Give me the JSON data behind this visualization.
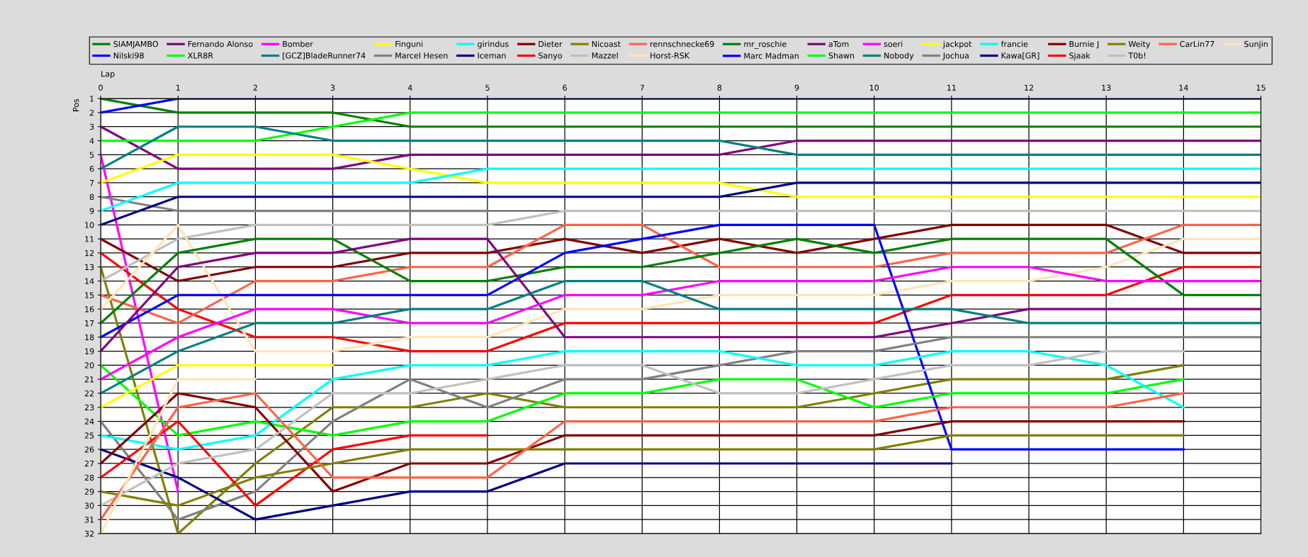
{
  "chart_data": {
    "type": "line",
    "xlabel": "Lap",
    "ylabel": "Pos",
    "x": [
      0,
      1,
      2,
      3,
      4,
      5,
      6,
      7,
      8,
      9,
      10,
      11,
      12,
      13,
      14,
      15
    ],
    "xlim": [
      0,
      15
    ],
    "xticks": [
      0,
      1,
      2,
      3,
      4,
      5,
      6,
      7,
      8,
      9,
      10,
      11,
      12,
      13,
      14,
      15
    ],
    "ylim": [
      32,
      1
    ],
    "yticks": [
      1,
      2,
      3,
      4,
      5,
      6,
      7,
      8,
      9,
      10,
      11,
      12,
      13,
      14,
      15,
      16,
      17,
      18,
      19,
      20,
      21,
      22,
      23,
      24,
      25,
      26,
      27,
      28,
      29,
      30,
      31,
      32
    ],
    "grid": true,
    "legend": "top",
    "series": [
      {
        "name": "SIAMJAMBO",
        "color": "#008000",
        "values": [
          1,
          2,
          2,
          2,
          3,
          3,
          3,
          3,
          3,
          3,
          3,
          3,
          3,
          3,
          3,
          3
        ]
      },
      {
        "name": "Nilski98",
        "color": "#0000ff",
        "values": [
          2,
          1,
          1,
          1,
          1,
          1,
          1,
          1,
          1,
          1,
          1,
          1,
          1,
          1,
          1,
          1
        ]
      },
      {
        "name": "Fernando Alonso",
        "color": "#800080",
        "values": [
          3,
          6,
          6,
          6,
          5,
          5,
          5,
          5,
          5,
          4,
          4,
          4,
          4,
          4,
          4,
          4
        ]
      },
      {
        "name": "XLR8R",
        "color": "#00ff00",
        "values": [
          4,
          4,
          4,
          3,
          2,
          2,
          2,
          2,
          2,
          2,
          2,
          2,
          2,
          2,
          2,
          2
        ]
      },
      {
        "name": "Bomber",
        "color": "#ff00ff",
        "values": [
          5,
          29,
          null,
          null,
          null,
          null,
          null,
          null,
          null,
          null,
          null,
          null,
          null,
          null,
          null,
          null
        ]
      },
      {
        "name": "[GCZ]BladeRunner74",
        "color": "#008080",
        "values": [
          6,
          3,
          3,
          4,
          4,
          4,
          4,
          4,
          4,
          5,
          5,
          5,
          5,
          5,
          5,
          5
        ]
      },
      {
        "name": "Finguni",
        "color": "#ffff00",
        "values": [
          7,
          5,
          5,
          5,
          6,
          7,
          7,
          7,
          7,
          8,
          8,
          8,
          8,
          8,
          8,
          8
        ]
      },
      {
        "name": "Marcel Hesen",
        "color": "#808080",
        "values": [
          8,
          9,
          9,
          9,
          9,
          9,
          null,
          null,
          null,
          null,
          null,
          null,
          null,
          null,
          null,
          null
        ]
      },
      {
        "name": "girindus",
        "color": "#00ffff",
        "values": [
          9,
          7,
          7,
          7,
          7,
          6,
          6,
          6,
          6,
          6,
          6,
          6,
          6,
          6,
          6,
          6
        ]
      },
      {
        "name": "Iceman",
        "color": "#000080",
        "values": [
          10,
          8,
          8,
          8,
          8,
          8,
          8,
          8,
          8,
          7,
          7,
          7,
          7,
          7,
          7,
          7
        ]
      },
      {
        "name": "Dieter",
        "color": "#800000",
        "values": [
          11,
          14,
          13,
          13,
          12,
          12,
          11,
          12,
          11,
          12,
          11,
          10,
          10,
          10,
          12,
          12
        ]
      },
      {
        "name": "Sanyo",
        "color": "#ff0000",
        "values": [
          12,
          16,
          18,
          18,
          19,
          19,
          17,
          17,
          17,
          17,
          17,
          15,
          15,
          15,
          13,
          13
        ]
      },
      {
        "name": "Nicoast",
        "color": "#808000",
        "values": [
          13,
          32,
          27,
          23,
          23,
          22,
          23,
          23,
          23,
          23,
          22,
          21,
          21,
          21,
          20,
          null
        ]
      },
      {
        "name": "Mazzel",
        "color": "#c0c0c0",
        "values": [
          14,
          11,
          10,
          10,
          10,
          10,
          9,
          9,
          9,
          9,
          9,
          9,
          9,
          9,
          9,
          9
        ]
      },
      {
        "name": "rennschnecke69",
        "color": "#ff6347",
        "values": [
          15,
          17,
          14,
          14,
          13,
          13,
          10,
          10,
          13,
          13,
          13,
          12,
          12,
          12,
          10,
          10
        ]
      },
      {
        "name": "Horst-RSK",
        "color": "#ffe4b5",
        "values": [
          16,
          10,
          19,
          19,
          18,
          18,
          16,
          16,
          15,
          15,
          15,
          14,
          14,
          13,
          11,
          11
        ]
      },
      {
        "name": "mr_roschie",
        "color": "#008000",
        "values": [
          17,
          12,
          11,
          11,
          14,
          14,
          13,
          13,
          12,
          11,
          12,
          11,
          11,
          11,
          15,
          15
        ]
      },
      {
        "name": "Marc Madman",
        "color": "#0000ff",
        "values": [
          18,
          15,
          15,
          15,
          15,
          15,
          12,
          11,
          10,
          10,
          10,
          26,
          26,
          26,
          26,
          null
        ]
      },
      {
        "name": "aTom",
        "color": "#800080",
        "values": [
          19,
          13,
          12,
          12,
          11,
          11,
          18,
          18,
          18,
          18,
          18,
          17,
          16,
          16,
          16,
          16
        ]
      },
      {
        "name": "Shawn",
        "color": "#00ff00",
        "values": [
          20,
          25,
          24,
          25,
          24,
          24,
          22,
          22,
          21,
          21,
          23,
          22,
          22,
          22,
          21,
          null
        ]
      },
      {
        "name": "soeri",
        "color": "#ff00ff",
        "values": [
          21,
          18,
          16,
          16,
          17,
          17,
          15,
          15,
          14,
          14,
          14,
          13,
          13,
          14,
          14,
          14
        ]
      },
      {
        "name": "Nobody",
        "color": "#008080",
        "values": [
          22,
          19,
          17,
          17,
          16,
          16,
          14,
          14,
          16,
          16,
          16,
          16,
          17,
          17,
          17,
          17
        ]
      },
      {
        "name": "jackpot",
        "color": "#ffff00",
        "values": [
          23,
          20,
          20,
          20,
          null,
          null,
          null,
          null,
          null,
          null,
          null,
          null,
          null,
          null,
          null,
          null
        ]
      },
      {
        "name": "Jochua",
        "color": "#808080",
        "values": [
          24,
          31,
          29,
          24,
          21,
          23,
          21,
          21,
          20,
          19,
          19,
          18,
          18,
          18,
          18,
          18
        ]
      },
      {
        "name": "francie",
        "color": "#00ffff",
        "values": [
          25,
          26,
          25,
          21,
          20,
          20,
          19,
          19,
          19,
          20,
          20,
          19,
          19,
          20,
          23,
          null
        ]
      },
      {
        "name": "Kawa[GR]",
        "color": "#000080",
        "values": [
          26,
          28,
          31,
          30,
          29,
          29,
          27,
          27,
          27,
          27,
          27,
          27,
          null,
          null,
          null,
          null
        ]
      },
      {
        "name": "Burnie J",
        "color": "#800000",
        "values": [
          27,
          22,
          23,
          29,
          27,
          27,
          25,
          25,
          25,
          25,
          25,
          24,
          24,
          24,
          24,
          null
        ]
      },
      {
        "name": "Sjaak",
        "color": "#ff0000",
        "values": [
          28,
          24,
          30,
          26,
          25,
          25,
          null,
          null,
          null,
          null,
          null,
          null,
          null,
          null,
          null,
          null
        ]
      },
      {
        "name": "Weity",
        "color": "#808000",
        "values": [
          29,
          30,
          28,
          27,
          26,
          26,
          26,
          26,
          26,
          26,
          26,
          25,
          25,
          25,
          25,
          null
        ]
      },
      {
        "name": "T0b!",
        "color": "#c0c0c0",
        "values": [
          30,
          27,
          26,
          22,
          22,
          21,
          20,
          20,
          22,
          22,
          21,
          20,
          20,
          19,
          19,
          null
        ]
      },
      {
        "name": "CarLin77",
        "color": "#ff6347",
        "values": [
          31,
          23,
          22,
          28,
          28,
          28,
          24,
          24,
          24,
          24,
          24,
          23,
          23,
          23,
          22,
          null
        ]
      },
      {
        "name": "Sunjin",
        "color": "#ffe4b5",
        "values": [
          32,
          21,
          21,
          null,
          null,
          null,
          null,
          null,
          null,
          null,
          null,
          null,
          null,
          null,
          null,
          null
        ]
      }
    ]
  }
}
